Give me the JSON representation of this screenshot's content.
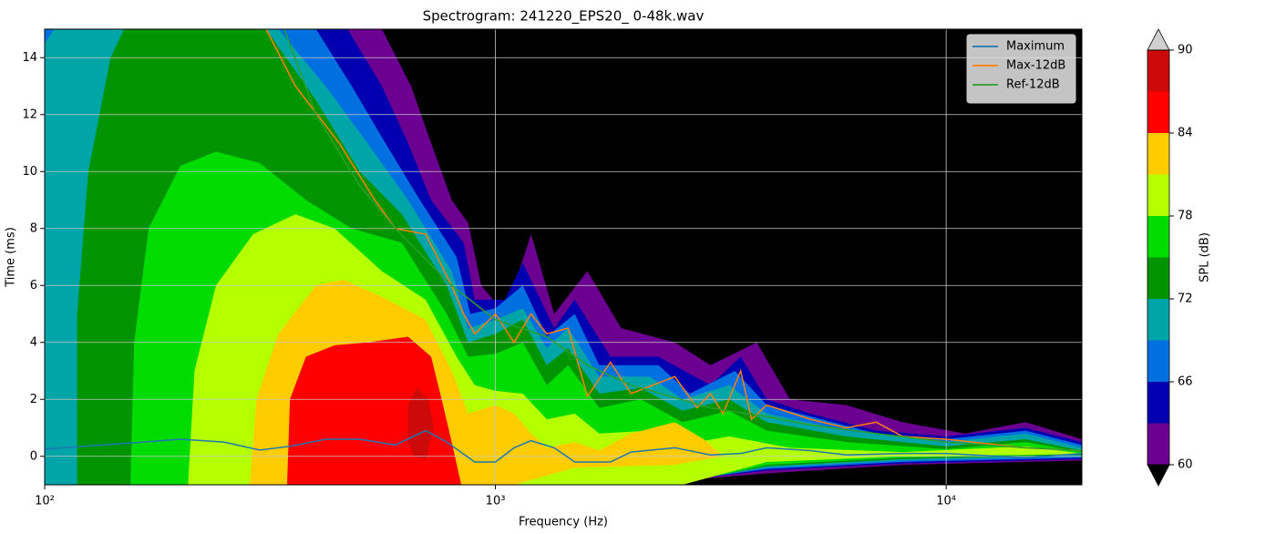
{
  "chart_data": {
    "type": "spectrogram",
    "title": "Spectrogram: 241220_EPS20_ 0-48k.wav",
    "x_label": "Frequency (Hz)",
    "y_label": "Time (ms)",
    "x_scale": "log",
    "xlim": [
      100,
      20000
    ],
    "xticks": [
      {
        "value": 100,
        "label": "10²"
      },
      {
        "value": 1000,
        "label": "10³"
      },
      {
        "value": 10000,
        "label": "10⁴"
      }
    ],
    "ylim": [
      -1,
      15
    ],
    "yticks": [
      0,
      2,
      4,
      6,
      8,
      10,
      12,
      14
    ],
    "grid": true,
    "legend": "upper right",
    "background": "#000000",
    "colorbar": {
      "label": "SPL (dB)",
      "levels": [
        60,
        63,
        66,
        69,
        72,
        75,
        78,
        81,
        84,
        87,
        90
      ],
      "colors": [
        "#6c0090",
        "#0000b0",
        "#0070e0",
        "#00a5a8",
        "#009400",
        "#00dc00",
        "#b4ff00",
        "#ffcc00",
        "#ff0000",
        "#cc0a0a"
      ],
      "ticks": [
        60,
        66,
        72,
        78,
        84,
        90
      ],
      "under": "#000000",
      "over": "#d0d0d0"
    },
    "contours": [
      {
        "x": [
          100,
          560,
          650,
          720,
          800,
          870,
          930,
          1050,
          1200,
          1350,
          1600,
          1900,
          2500,
          3000,
          3800,
          4500,
          6000,
          8000,
          11000,
          15000,
          20000,
          20000,
          8000,
          4000,
          2000,
          100
        ],
        "y": [
          15,
          15,
          13,
          11,
          9,
          8.2,
          6,
          5,
          7.8,
          5,
          6.5,
          4.5,
          4,
          3.2,
          4,
          2,
          1.8,
          1.2,
          0.8,
          1.2,
          0.6,
          -0.15,
          -0.3,
          -0.6,
          -1,
          -1
        ]
      },
      {
        "x": [
          100,
          470,
          560,
          640,
          720,
          850,
          900,
          1050,
          1150,
          1350,
          1500,
          1800,
          2300,
          3000,
          3500,
          4000,
          5000,
          7000,
          10000,
          15000,
          20000,
          20000,
          8000,
          4000,
          2100,
          100
        ],
        "y": [
          15,
          15,
          13,
          11,
          9,
          7.5,
          5.5,
          5.5,
          6.8,
          4.5,
          5.5,
          3.5,
          3.5,
          2.5,
          3.5,
          2,
          1.5,
          0.9,
          0.7,
          1,
          0.5,
          -0.1,
          -0.25,
          -0.5,
          -1,
          -1
        ]
      },
      {
        "x": [
          100,
          400,
          480,
          570,
          680,
          820,
          880,
          1000,
          1150,
          1300,
          1500,
          1700,
          2300,
          2700,
          3400,
          4000,
          5000,
          7000,
          10000,
          15000,
          20000,
          20000,
          8000,
          4000,
          2200,
          100
        ],
        "y": [
          15,
          15,
          13,
          11,
          9,
          7,
          5,
          5.2,
          6,
          4.2,
          5,
          3.2,
          3.2,
          2.2,
          3,
          1.8,
          1.4,
          0.8,
          0.6,
          0.9,
          0.4,
          -0.05,
          -0.2,
          -0.45,
          -1,
          -1
        ]
      },
      {
        "x": [
          100,
          105,
          330,
          420,
          520,
          640,
          800,
          870,
          1000,
          1150,
          1300,
          1450,
          1700,
          2200,
          2600,
          3300,
          4000,
          6000,
          10000,
          15000,
          20000,
          20000,
          8000,
          4000,
          2300,
          100
        ],
        "y": [
          14.5,
          15,
          15,
          13,
          11,
          9,
          6.5,
          4.5,
          4.8,
          5.2,
          3.8,
          4.5,
          2.8,
          2.8,
          2,
          2.5,
          1.5,
          0.9,
          0.5,
          0.8,
          0.3,
          0,
          -0.15,
          -0.4,
          -1,
          -1
        ]
      },
      {
        "x": [
          118,
          118,
          125,
          140,
          150,
          310,
          400,
          500,
          620,
          780,
          870,
          1000,
          1150,
          1300,
          1450,
          1700,
          2100,
          2600,
          3300,
          4000,
          6000,
          10000,
          15000,
          20000,
          20000,
          8000,
          4000,
          2400
        ],
        "y": [
          -1,
          5,
          10,
          14,
          15,
          15,
          12.5,
          10,
          8.5,
          6,
          4,
          4.3,
          4.8,
          3.2,
          3.8,
          2.2,
          2.4,
          1.6,
          2,
          1.2,
          0.7,
          0.35,
          0.6,
          0.2,
          0.05,
          -0.1,
          -0.35,
          -1
        ]
      },
      {
        "x": [
          155,
          158,
          170,
          200,
          240,
          300,
          380,
          480,
          620,
          780,
          870,
          1000,
          1150,
          1300,
          1450,
          1700,
          2100,
          2600,
          3300,
          4000,
          6000,
          10000,
          15000,
          20000,
          20000,
          8000,
          4000,
          2500
        ],
        "y": [
          -1,
          4,
          8,
          10.2,
          10.7,
          10.3,
          9,
          8,
          7.5,
          5,
          3.5,
          3.6,
          4,
          2.5,
          3.2,
          1.7,
          2,
          1.2,
          1.6,
          0.9,
          0.5,
          0.25,
          0.5,
          0.15,
          0.08,
          -0.05,
          -0.3,
          -1
        ]
      },
      {
        "x": [
          208,
          215,
          240,
          290,
          360,
          440,
          560,
          700,
          820,
          900,
          1000,
          1150,
          1300,
          1500,
          1700,
          2200,
          2800,
          3300,
          4500,
          8000,
          15000,
          20000,
          20000,
          8000,
          4000,
          2600
        ],
        "y": [
          -1,
          3,
          6,
          7.8,
          8.5,
          8,
          6.5,
          5.5,
          3.5,
          2.5,
          2.3,
          2.2,
          1.3,
          1.5,
          0.8,
          0.9,
          0.5,
          0.7,
          0.3,
          0.15,
          0.35,
          0.1,
          0.08,
          0,
          -0.2,
          -1
        ]
      },
      {
        "x": [
          285,
          295,
          330,
          400,
          460,
          560,
          700,
          800,
          870,
          1000,
          1100,
          1200,
          1300,
          1500,
          1700,
          2000,
          2500,
          2900,
          3200,
          2500,
          1500,
          1100
        ],
        "y": [
          -1,
          2,
          4.3,
          6,
          6.2,
          5.6,
          4.8,
          3,
          1.5,
          1.8,
          1.5,
          0.8,
          0.3,
          0.5,
          0.2,
          0.8,
          1.2,
          0.6,
          0,
          -0.3,
          -0.4,
          -1
        ]
      },
      {
        "x": [
          345,
          350,
          380,
          440,
          520,
          640,
          720,
          760,
          800,
          840
        ],
        "y": [
          -1,
          2,
          3.5,
          3.9,
          4,
          4.2,
          3.5,
          2,
          0.5,
          -1
        ]
      },
      {
        "x": [
          640,
          640,
          670,
          710,
          730,
          700,
          660
        ],
        "y": [
          0.5,
          1.8,
          2.4,
          2,
          1,
          -0.1,
          0
        ]
      }
    ],
    "series": [
      {
        "name": "Maximum",
        "color": "#1f77b4",
        "x": [
          100,
          150,
          200,
          250,
          300,
          350,
          420,
          500,
          600,
          700,
          780,
          900,
          1000,
          1100,
          1200,
          1350,
          1500,
          1800,
          2000,
          2500,
          3000,
          3500,
          4000,
          5000,
          6000,
          8000,
          10000,
          15000,
          20000
        ],
        "values": [
          0.25,
          0.45,
          0.6,
          0.5,
          0.22,
          0.35,
          0.6,
          0.6,
          0.4,
          0.9,
          0.5,
          -0.2,
          -0.2,
          0.3,
          0.55,
          0.3,
          -0.2,
          -0.2,
          0.15,
          0.3,
          0.05,
          0.1,
          0.3,
          0.2,
          0.05,
          0.1,
          0.1,
          -0.05,
          0.1
        ]
      },
      {
        "name": "Max-12dB",
        "color": "#ff7f0e",
        "x": [
          310,
          360,
          450,
          540,
          600,
          700,
          800,
          850,
          900,
          1000,
          1100,
          1200,
          1300,
          1450,
          1600,
          1800,
          2000,
          2500,
          2800,
          3000,
          3200,
          3500,
          3700,
          4000,
          5000,
          6000,
          7000,
          8000,
          10000,
          15000,
          20000
        ],
        "values": [
          15,
          13,
          11,
          9,
          8,
          7.8,
          6,
          5,
          4.3,
          5,
          4,
          5,
          4.3,
          4.5,
          2.1,
          3.3,
          2.2,
          2.8,
          1.7,
          2.2,
          1.5,
          3,
          1.3,
          1.8,
          1.3,
          1,
          1.2,
          0.7,
          0.6,
          0.3,
          0.2
        ]
      },
      {
        "name": "Ref-12dB",
        "color": "#2ca02c",
        "x": [
          340,
          400,
          500,
          600,
          800,
          1000,
          1300,
          1600,
          2000,
          3000,
          4000,
          5000,
          7000,
          10000,
          15000,
          20000
        ],
        "values": [
          15,
          12,
          9.5,
          8,
          6,
          4.8,
          4.2,
          3.2,
          2.5,
          1.7,
          1.4,
          1.1,
          0.8,
          0.5,
          0.3,
          0.2
        ]
      }
    ]
  }
}
